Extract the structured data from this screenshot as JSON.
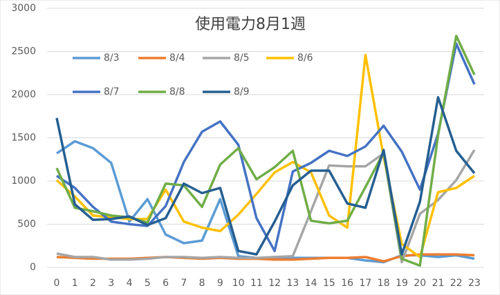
{
  "chart_data": {
    "type": "line",
    "title": "使用電力8月1週",
    "x": [
      0,
      1,
      2,
      3,
      4,
      5,
      6,
      7,
      8,
      9,
      10,
      11,
      12,
      13,
      14,
      15,
      16,
      17,
      18,
      19,
      20,
      21,
      22,
      23
    ],
    "ylim": [
      0,
      3000
    ],
    "yticks": [
      0,
      500,
      1000,
      1500,
      2000,
      2500,
      3000
    ],
    "grid": true,
    "series": [
      {
        "name": "8/3",
        "color": "#5b9bd5",
        "values": [
          1320,
          1460,
          1380,
          1210,
          530,
          790,
          380,
          280,
          310,
          790,
          130,
          110,
          110,
          110,
          110,
          110,
          110,
          80,
          60,
          140,
          140,
          120,
          140,
          100
        ]
      },
      {
        "name": "8/4",
        "color": "#ed7d31",
        "values": [
          120,
          110,
          100,
          100,
          100,
          110,
          120,
          110,
          100,
          110,
          100,
          100,
          90,
          90,
          100,
          110,
          110,
          120,
          70,
          130,
          150,
          150,
          150,
          140
        ]
      },
      {
        "name": "8/5",
        "color": "#a5a5a5",
        "values": [
          160,
          120,
          120,
          90,
          90,
          100,
          120,
          120,
          110,
          120,
          110,
          110,
          120,
          130,
          650,
          1180,
          1170,
          1170,
          1320,
          60,
          620,
          780,
          1010,
          1360
        ]
      },
      {
        "name": "8/6",
        "color": "#ffc000",
        "values": [
          1010,
          820,
          600,
          580,
          560,
          560,
          900,
          530,
          460,
          420,
          610,
          850,
          1100,
          1220,
          1100,
          600,
          460,
          2460,
          1280,
          270,
          120,
          870,
          920,
          1060
        ]
      },
      {
        "name": "8/7",
        "color": "#4472c4",
        "values": [
          1060,
          920,
          700,
          530,
          500,
          480,
          710,
          1220,
          1570,
          1690,
          1420,
          570,
          190,
          1110,
          1210,
          1350,
          1290,
          1400,
          1640,
          1340,
          900,
          1550,
          2590,
          2120
        ]
      },
      {
        "name": "8/8",
        "color": "#70ad47",
        "values": [
          1150,
          690,
          650,
          600,
          580,
          520,
          970,
          950,
          700,
          1190,
          1380,
          1020,
          1160,
          1350,
          540,
          510,
          540,
          930,
          1330,
          100,
          20,
          1530,
          2680,
          2230
        ]
      },
      {
        "name": "8/9",
        "color": "#255e91",
        "values": [
          1730,
          730,
          550,
          560,
          590,
          490,
          570,
          970,
          860,
          920,
          190,
          150,
          530,
          950,
          1120,
          1120,
          740,
          690,
          1360,
          150,
          760,
          1970,
          1350,
          1090
        ]
      }
    ]
  }
}
